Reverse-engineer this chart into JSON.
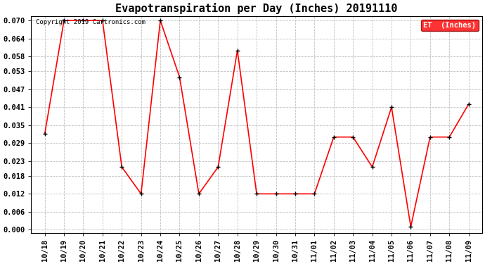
{
  "title": "Evapotranspiration per Day (Inches) 20191110",
  "copyright_text": "Copyright 2019 Cartronics.com",
  "legend_label": "ET  (Inches)",
  "x_labels": [
    "10/18",
    "10/19",
    "10/20",
    "10/21",
    "10/22",
    "10/23",
    "10/24",
    "10/25",
    "10/26",
    "10/27",
    "10/28",
    "10/29",
    "10/30",
    "10/31",
    "11/01",
    "11/02",
    "11/03",
    "11/04",
    "11/05",
    "11/06",
    "11/07",
    "11/08",
    "11/09"
  ],
  "y_values": [
    0.032,
    0.07,
    0.07,
    0.07,
    0.021,
    0.012,
    0.07,
    0.051,
    0.012,
    0.021,
    0.06,
    0.012,
    0.012,
    0.012,
    0.012,
    0.031,
    0.031,
    0.021,
    0.041,
    0.001,
    0.031,
    0.031,
    0.042
  ],
  "line_color": "#ff0000",
  "marker_color": "#000000",
  "background_color": "#ffffff",
  "grid_color": "#c0c0c0",
  "ylim": [
    -0.001,
    0.0715
  ],
  "yticks": [
    0.0,
    0.006,
    0.012,
    0.018,
    0.023,
    0.029,
    0.035,
    0.041,
    0.047,
    0.053,
    0.058,
    0.064,
    0.07
  ],
  "title_fontsize": 11,
  "tick_fontsize": 7.5,
  "copyright_fontsize": 6.5,
  "legend_fontsize": 7.5
}
